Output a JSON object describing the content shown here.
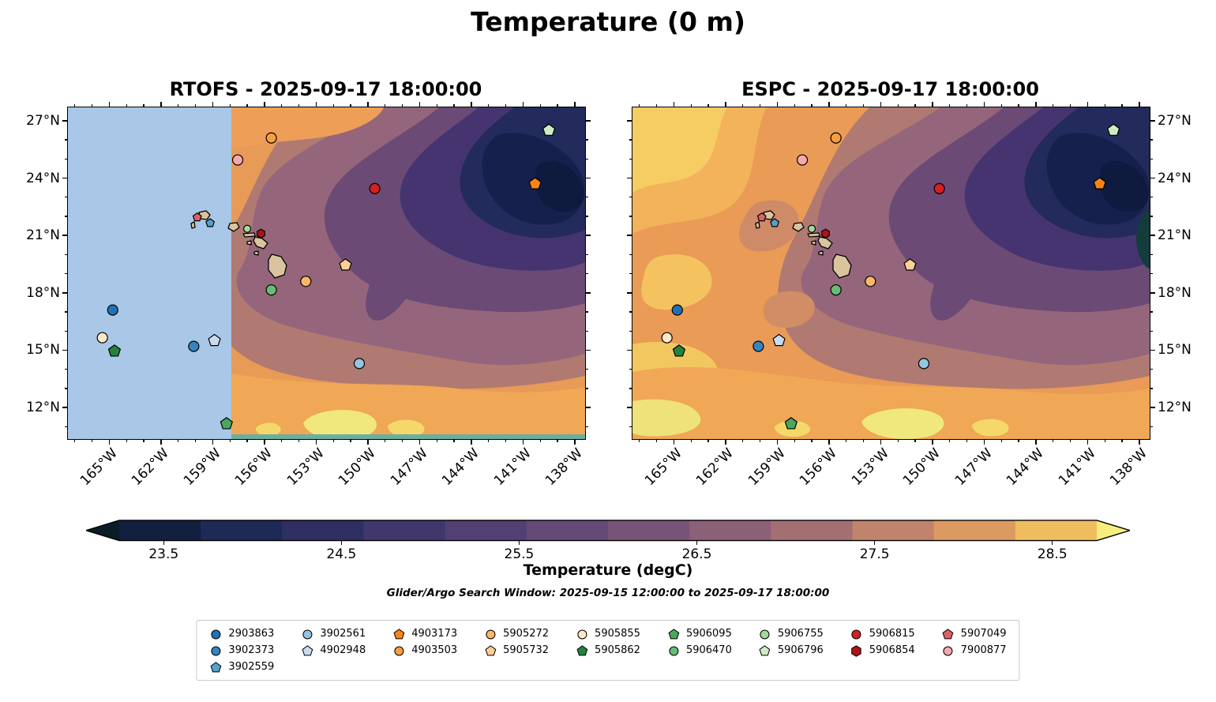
{
  "figure_title": "Temperature (0 m)",
  "panels": [
    {
      "name": "rtofs",
      "title": "RTOFS - 2025-09-17 18:00:00",
      "ylabels_side": "left",
      "mask_color": "#a9c7e6"
    },
    {
      "name": "espc",
      "title": "ESPC - 2025-09-17 18:00:00",
      "ylabels_side": "right"
    }
  ],
  "axes": {
    "lon_min": -167.4,
    "lon_max": -137.4,
    "lat_min": 10.35,
    "lat_max": 27.7,
    "x_major": [
      -165,
      -162,
      -159,
      -156,
      -153,
      -150,
      -147,
      -144,
      -141,
      -138
    ],
    "x_labels": [
      "165°W",
      "162°W",
      "159°W",
      "156°W",
      "153°W",
      "150°W",
      "147°W",
      "144°W",
      "141°W",
      "138°W"
    ],
    "y_major": [
      27,
      24,
      21,
      18,
      15,
      12
    ],
    "y_labels": [
      "27°N",
      "24°N",
      "21°N",
      "18°N",
      "15°N",
      "12°N"
    ]
  },
  "colorbar": {
    "label": "Temperature (degC)",
    "vmin": 23.25,
    "vmax": 28.75,
    "tick_values": [
      23.5,
      24.5,
      25.5,
      26.5,
      27.5,
      28.5
    ],
    "tick_labels": [
      "23.5",
      "24.5",
      "25.5",
      "26.5",
      "27.5",
      "28.5"
    ],
    "under_color": "#0b1c26",
    "over_color": "#f6ee7d",
    "segment_colors": [
      "#12203f",
      "#1e2a55",
      "#2f2f63",
      "#41376d",
      "#524074",
      "#644a77",
      "#775477",
      "#8c6076",
      "#a36f73",
      "#c0836c",
      "#dc9a60",
      "#f0bd5e"
    ]
  },
  "subtitle": "Glider/Argo Search Window: 2025-09-15 12:00:00 to 2025-09-17 18:00:00",
  "chart_data": {
    "type": "heatmap",
    "overlay": "scatter",
    "description": "Sea surface temperature at 0 m from two ocean models (RTOFS and ESPC) over the Hawaii region, with glider/Argo float observation positions overlaid. RTOFS panel has a no-data mask west of about 158W.",
    "xlabel": "Longitude",
    "ylabel": "Latitude",
    "xlim": [
      -167.4,
      -137.4
    ],
    "ylim": [
      10.35,
      27.7
    ],
    "value_label": "Temperature (degC)",
    "value_range": [
      23.25,
      28.75
    ],
    "legend_ncol": 9,
    "markers": [
      {
        "id": "2903863",
        "shape": "circle",
        "color": "#2171b5",
        "lon": -164.8,
        "lat": 17.1
      },
      {
        "id": "3902373",
        "shape": "circle",
        "color": "#3585c0",
        "lon": -160.1,
        "lat": 15.2
      },
      {
        "id": "3902559",
        "shape": "pentagon",
        "color": "#56a0ce",
        "lon": -159.15,
        "lat": 21.65,
        "size": "small"
      },
      {
        "id": "3902561",
        "shape": "circle",
        "color": "#94c6e2",
        "lon": -150.5,
        "lat": 14.3
      },
      {
        "id": "4902948",
        "shape": "pentagon",
        "color": "#c8dcef",
        "lon": -158.9,
        "lat": 15.5
      },
      {
        "id": "4903173",
        "shape": "pentagon",
        "color": "#f98416",
        "lon": -140.3,
        "lat": 23.7
      },
      {
        "id": "4903503",
        "shape": "circle",
        "color": "#fa9e3c",
        "lon": -155.6,
        "lat": 26.1
      },
      {
        "id": "5905272",
        "shape": "circle",
        "color": "#fcb76a",
        "lon": -153.6,
        "lat": 18.6
      },
      {
        "id": "5905732",
        "shape": "pentagon",
        "color": "#fdcf95",
        "lon": -151.3,
        "lat": 19.45
      },
      {
        "id": "5905855",
        "shape": "circle",
        "color": "#fde8c8",
        "lon": -165.4,
        "lat": 15.65
      },
      {
        "id": "5905862",
        "shape": "pentagon",
        "color": "#23833c",
        "lon": -164.7,
        "lat": 14.95
      },
      {
        "id": "5906095",
        "shape": "pentagon",
        "color": "#48a85c",
        "lon": -158.2,
        "lat": 11.15
      },
      {
        "id": "5906470",
        "shape": "circle",
        "color": "#67bd74",
        "lon": -155.6,
        "lat": 18.15
      },
      {
        "id": "5906755",
        "shape": "circle",
        "color": "#a3d9a0",
        "lon": -157.0,
        "lat": 21.35,
        "size": "small"
      },
      {
        "id": "5906796",
        "shape": "pentagon",
        "color": "#cdecc4",
        "lon": -139.5,
        "lat": 26.5
      },
      {
        "id": "5906815",
        "shape": "circle",
        "color": "#d7201f",
        "lon": -149.6,
        "lat": 23.45
      },
      {
        "id": "5906854",
        "shape": "hexagon",
        "color": "#ad1418",
        "lon": -156.2,
        "lat": 21.1,
        "size": "small"
      },
      {
        "id": "5907049",
        "shape": "pentagon",
        "color": "#de6168",
        "lon": -159.9,
        "lat": 21.95,
        "size": "small"
      },
      {
        "id": "7900877",
        "shape": "circle",
        "color": "#f5a8a9",
        "lon": -157.55,
        "lat": 24.95
      }
    ]
  }
}
